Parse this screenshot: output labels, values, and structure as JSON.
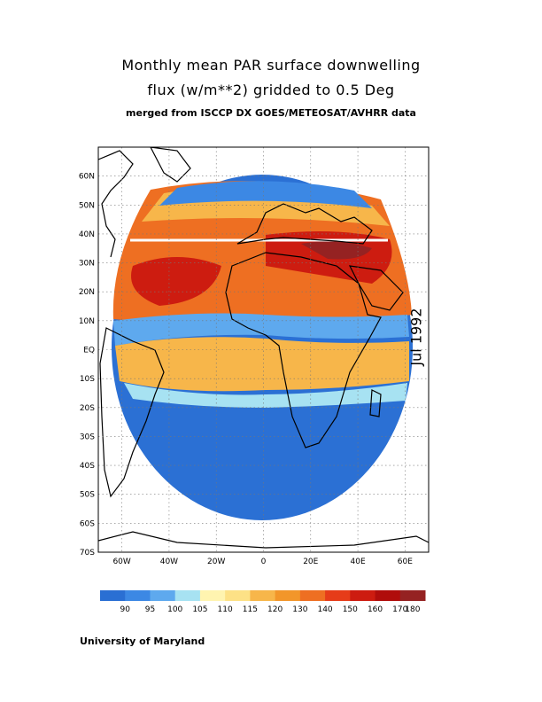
{
  "title": {
    "line1": "Monthly mean PAR surface downwelling",
    "line2": "flux (w/m**2) gridded to 0.5 Deg",
    "line3": "merged from ISCCP DX GOES/METEOSAT/AVHRR data"
  },
  "date_label": "Jul 1992",
  "credit": "University of Maryland",
  "map": {
    "lat_labels": [
      "60N",
      "50N",
      "40N",
      "30N",
      "20N",
      "10N",
      "EQ",
      "10S",
      "20S",
      "30S",
      "40S",
      "50S",
      "60S",
      "70S"
    ],
    "lon_labels": [
      "60W",
      "40W",
      "20W",
      "0",
      "20E",
      "40E",
      "60E"
    ],
    "lat_values": [
      60,
      50,
      40,
      30,
      20,
      10,
      0,
      -10,
      -20,
      -30,
      -40,
      -50,
      -60,
      -70
    ],
    "lon_values": [
      -60,
      -40,
      -20,
      0,
      20,
      40,
      60
    ],
    "lon_range": [
      -70,
      70
    ],
    "lat_range": [
      -70,
      70
    ]
  },
  "legend": {
    "colors": [
      "#2a6fd3",
      "#3c88e4",
      "#5ea9ee",
      "#a7e2f2",
      "#fff4b0",
      "#fde186",
      "#f7b64a",
      "#f2962a",
      "#ee6f22",
      "#e63c19",
      "#cd1c10",
      "#b00d0b",
      "#952222"
    ],
    "labels": [
      "90",
      "95",
      "100",
      "105",
      "110",
      "115",
      "120",
      "130",
      "140",
      "150",
      "160",
      "170",
      "180"
    ]
  }
}
